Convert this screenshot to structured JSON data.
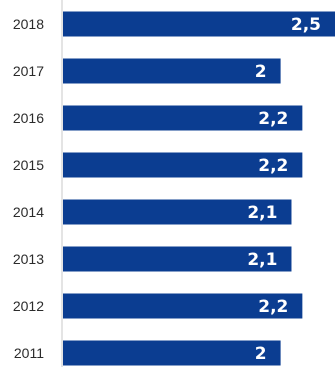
{
  "chart_data": {
    "type": "bar",
    "orientation": "horizontal",
    "categories": [
      "2018",
      "2017",
      "2016",
      "2015",
      "2014",
      "2013",
      "2012",
      "2011"
    ],
    "values": [
      2.5,
      2,
      2.2,
      2.2,
      2.1,
      2.1,
      2.2,
      2
    ],
    "data_labels": [
      "2,5",
      "2",
      "2,2",
      "2,2",
      "2,1",
      "2,1",
      "2,2",
      "2"
    ],
    "title": "",
    "xlabel": "",
    "ylabel": "",
    "xlim": [
      0,
      2.5
    ],
    "grid": false,
    "legend": "none",
    "bar_color": "#0b3d91",
    "axis_color": "#c8c8c8"
  }
}
